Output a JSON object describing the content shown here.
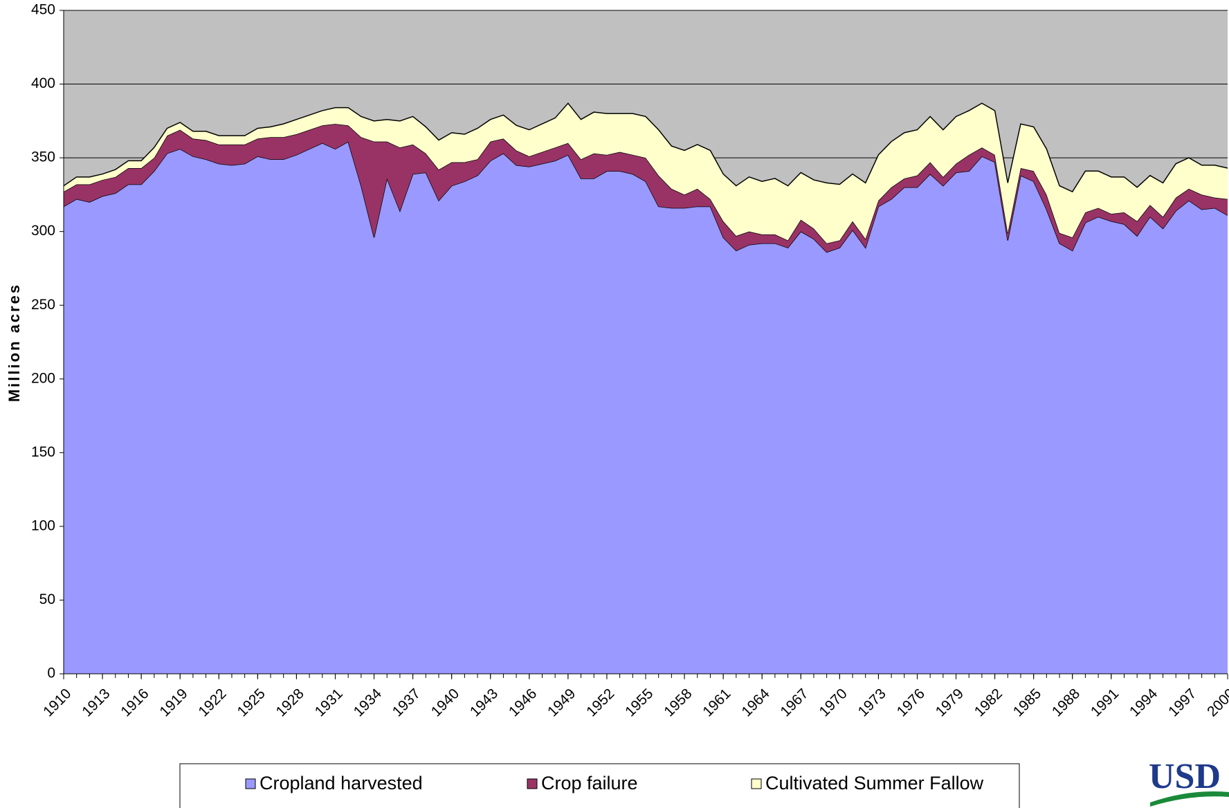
{
  "chart_data": {
    "type": "stacked_area",
    "y_label": "Million acres",
    "x": [
      1910,
      1911,
      1912,
      1913,
      1914,
      1915,
      1916,
      1917,
      1918,
      1919,
      1920,
      1921,
      1922,
      1923,
      1924,
      1925,
      1926,
      1927,
      1928,
      1929,
      1930,
      1931,
      1932,
      1933,
      1934,
      1935,
      1936,
      1937,
      1938,
      1939,
      1940,
      1941,
      1942,
      1943,
      1944,
      1945,
      1946,
      1947,
      1948,
      1949,
      1950,
      1951,
      1952,
      1953,
      1954,
      1955,
      1956,
      1957,
      1958,
      1959,
      1960,
      1961,
      1962,
      1963,
      1964,
      1965,
      1966,
      1967,
      1968,
      1969,
      1970,
      1971,
      1972,
      1973,
      1974,
      1975,
      1976,
      1977,
      1978,
      1979,
      1980,
      1981,
      1982,
      1983,
      1984,
      1985,
      1986,
      1987,
      1988,
      1989,
      1990,
      1991,
      1992,
      1993,
      1994,
      1995,
      1996,
      1997,
      1998,
      1999,
      2000
    ],
    "series": [
      {
        "name": "Cropland harvested",
        "color": "#9999ff",
        "values": [
          317,
          322,
          320,
          324,
          326,
          332,
          332,
          341,
          353,
          356,
          351,
          349,
          346,
          345,
          346,
          351,
          349,
          349,
          352,
          356,
          360,
          356,
          361,
          331,
          296,
          336,
          314,
          339,
          340,
          321,
          331,
          334,
          338,
          348,
          353,
          345,
          344,
          346,
          348,
          352,
          336,
          336,
          341,
          341,
          339,
          334,
          317,
          316,
          316,
          317,
          317,
          296,
          287,
          291,
          292,
          292,
          289,
          300,
          295,
          286,
          289,
          301,
          289,
          317,
          322,
          330,
          330,
          339,
          331,
          340,
          341,
          351,
          347,
          294,
          338,
          334,
          315,
          292,
          287,
          306,
          310,
          307,
          305,
          297,
          310,
          302,
          314,
          321,
          315,
          316,
          311
        ]
      },
      {
        "name": "Crop failure",
        "color": "#993366",
        "values": [
          10,
          10,
          12,
          11,
          11,
          11,
          11,
          9,
          12,
          13,
          12,
          13,
          13,
          14,
          13,
          12,
          15,
          15,
          14,
          13,
          12,
          17,
          11,
          33,
          65,
          25,
          43,
          20,
          13,
          21,
          16,
          13,
          11,
          13,
          10,
          10,
          7,
          8,
          9,
          8,
          13,
          17,
          11,
          13,
          13,
          16,
          21,
          13,
          9,
          12,
          5,
          11,
          10,
          9,
          6,
          6,
          5,
          8,
          7,
          6,
          5,
          6,
          6,
          4,
          8,
          6,
          8,
          8,
          6,
          6,
          11,
          6,
          5,
          5,
          5,
          7,
          10,
          7,
          9,
          7,
          6,
          5,
          8,
          10,
          8,
          8,
          9,
          8,
          10,
          7,
          11
        ]
      },
      {
        "name": "Cultivated Summer Fallow",
        "color": "#ffffcc",
        "values": [
          4,
          5,
          5,
          4,
          5,
          5,
          5,
          7,
          5,
          5,
          5,
          6,
          6,
          6,
          6,
          7,
          7,
          9,
          10,
          10,
          10,
          11,
          12,
          14,
          14,
          15,
          18,
          19,
          18,
          20,
          20,
          19,
          21,
          15,
          16,
          17,
          18,
          19,
          20,
          27,
          27,
          28,
          28,
          26,
          28,
          28,
          31,
          29,
          30,
          30,
          33,
          32,
          34,
          37,
          36,
          38,
          37,
          32,
          33,
          41,
          38,
          32,
          38,
          31,
          31,
          31,
          31,
          31,
          32,
          32,
          30,
          30,
          30,
          34,
          30,
          30,
          31,
          32,
          31,
          28,
          25,
          25,
          24,
          23,
          20,
          23,
          23,
          21,
          20,
          22,
          21
        ]
      }
    ],
    "xlim": [
      1910,
      2000
    ],
    "xticks": [
      1910,
      1913,
      1916,
      1919,
      1922,
      1925,
      1928,
      1931,
      1934,
      1937,
      1940,
      1943,
      1946,
      1949,
      1952,
      1955,
      1958,
      1961,
      1964,
      1967,
      1970,
      1973,
      1976,
      1979,
      1982,
      1985,
      1988,
      1991,
      1994,
      1997,
      2000
    ],
    "ylim": [
      0,
      450
    ],
    "yticks": [
      0,
      50,
      100,
      150,
      200,
      250,
      300,
      350,
      400,
      450
    ],
    "grid": true,
    "plot_background": "#c0c0c0",
    "legend": "bottom",
    "logo": "USD"
  }
}
